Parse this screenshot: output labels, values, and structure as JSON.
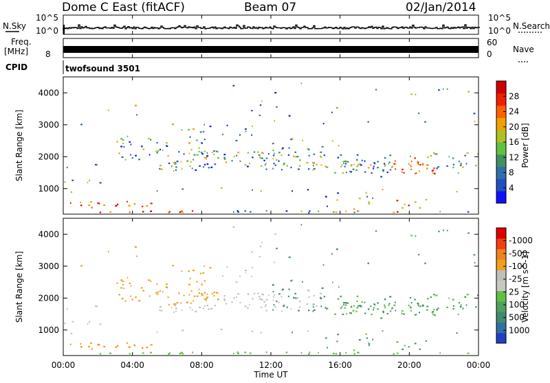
{
  "header": {
    "station": "Dome C East (fitACF)",
    "beam": "Beam 07",
    "date": "02/Jan/2014"
  },
  "top_panels": {
    "nsky_label": "N.Sky",
    "nsky_ticks": [
      "10^5",
      "10^0"
    ],
    "nsearch_label": "N.Search",
    "nsearch_ticks": [
      "10^5",
      "10^0"
    ],
    "freq_label_1": "Freq.",
    "freq_label_2": "[MHz]",
    "freq_tick": "8",
    "nave_label": "Nave",
    "nave_ticks": [
      "60",
      "0"
    ],
    "cpid_label": "CPID",
    "cpid_value": "twofsound 3501"
  },
  "chart_data": [
    {
      "type": "heatmap",
      "name": "power",
      "ylabel": "Slant Range [km]",
      "ylim": [
        200,
        4500
      ],
      "yticks": [
        1000,
        2000,
        3000,
        4000
      ],
      "xlim": [
        0,
        24
      ],
      "colorbar": {
        "label": "Power [dB]",
        "ticks": [
          "4",
          "8",
          "12",
          "16",
          "20",
          "24",
          "28"
        ],
        "colors": [
          "#1010ff",
          "#2050c0",
          "#3070a8",
          "#409060",
          "#60c040",
          "#b0c020",
          "#f0a000",
          "#ff6000",
          "#f02000",
          "#d00000"
        ]
      }
    },
    {
      "type": "heatmap",
      "name": "velocity",
      "ylabel": "Slant Range [km]",
      "ylim": [
        200,
        4500
      ],
      "yticks": [
        1000,
        2000,
        3000,
        4000
      ],
      "xlim": [
        0,
        24
      ],
      "xticks": [
        "00:00",
        "04:00",
        "08:00",
        "12:00",
        "16:00",
        "20:00",
        "00:00"
      ],
      "xlabel": "Time UT",
      "colorbar": {
        "label": "Velocity [m s^-1]",
        "ticks": [
          "1000",
          "500",
          "100",
          "25",
          "-25",
          "-100",
          "-500",
          "-1000"
        ],
        "colors": [
          "#2040c0",
          "#3070a0",
          "#408a70",
          "#50a060",
          "#60c040",
          "#c8c8c0",
          "#c0c0b8",
          "#f0a020",
          "#f08020",
          "#f04010",
          "#e00000"
        ]
      }
    }
  ]
}
